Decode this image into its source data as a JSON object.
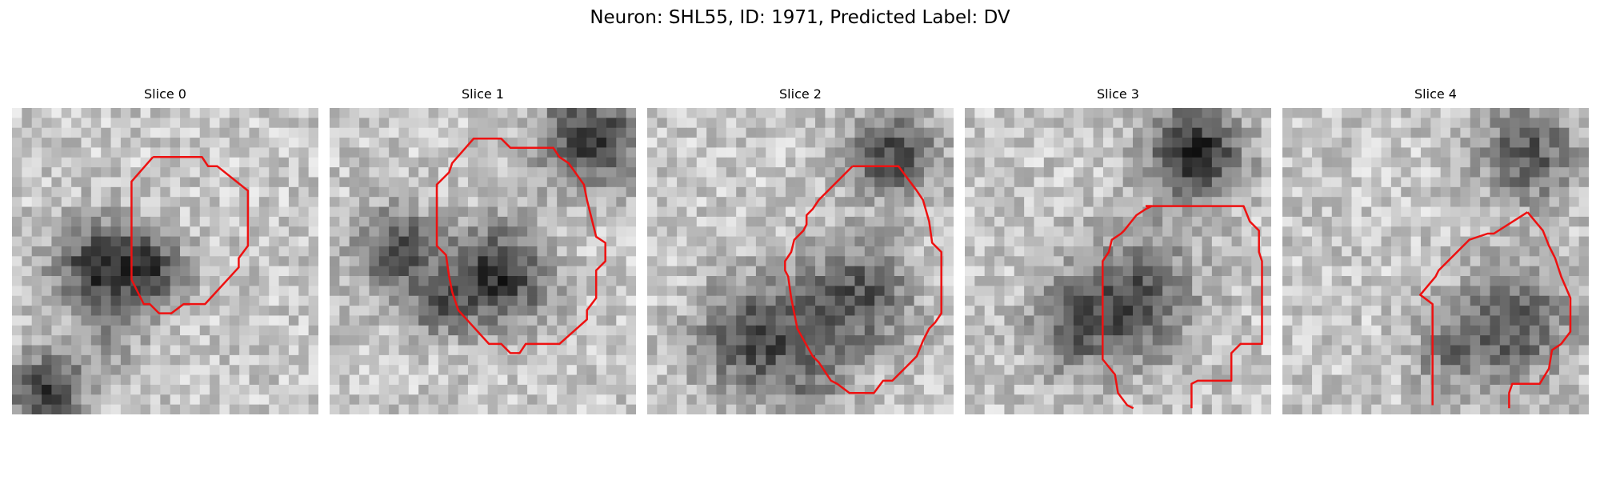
{
  "figure": {
    "title": "Neuron: SHL55, ID: 1971, Predicted Label: DV"
  },
  "panels": [
    {
      "title": "Slice 0"
    },
    {
      "title": "Slice 1"
    },
    {
      "title": "Slice 2"
    },
    {
      "title": "Slice 3"
    },
    {
      "title": "Slice 4"
    }
  ],
  "colors": {
    "contour": "#ee1111",
    "background": "#ffffff"
  }
}
